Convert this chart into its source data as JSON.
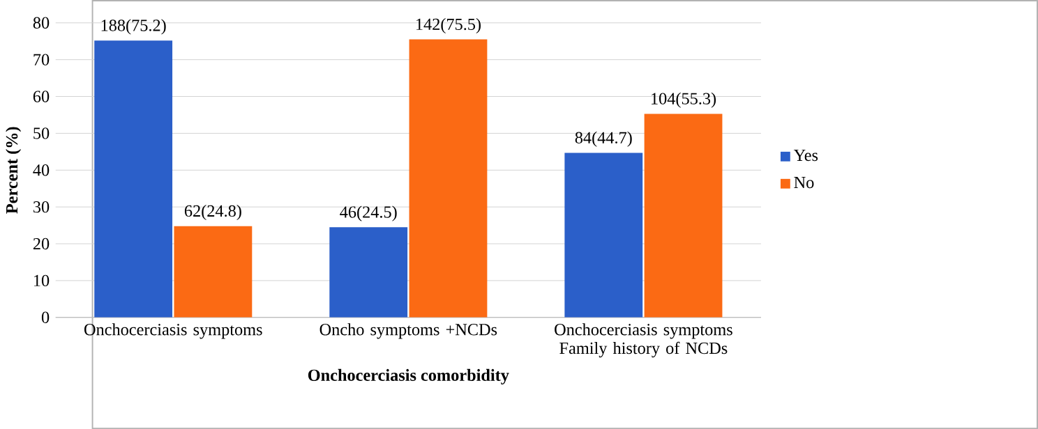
{
  "chart_data": {
    "type": "bar",
    "xlabel": "Onchocerciasis comorbidity",
    "ylabel": "Percent (%)",
    "categories": [
      "Onchocerciasis symptoms",
      "Oncho symptoms +NCDs",
      "Onchocerciasis symptoms Family history of NCDs"
    ],
    "series": [
      {
        "name": "Yes",
        "color": "#2b5fc9",
        "values": [
          75.2,
          24.5,
          44.7
        ],
        "value_labels": [
          "188(75.2)",
          "46(24.5)",
          "84(44.7)"
        ]
      },
      {
        "name": "No",
        "color": "#fb6a14",
        "values": [
          24.8,
          75.5,
          55.3
        ],
        "value_labels": [
          "62(24.8)",
          "142(75.5)",
          "104(55.3)"
        ]
      }
    ],
    "ylim": [
      0,
      80
    ],
    "yticks": [
      0,
      10,
      20,
      30,
      40,
      50,
      60,
      70,
      80
    ],
    "grid": "y",
    "legend": "right"
  }
}
